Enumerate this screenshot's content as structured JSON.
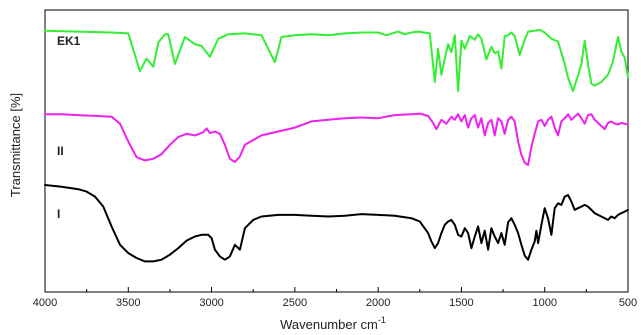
{
  "chart_data": {
    "type": "line",
    "xlabel": "Wavenumber cm",
    "xlabel_superscript": "-1",
    "ylabel": "Transmittance [%]",
    "xlim": [
      4000,
      500
    ],
    "x_reversed": true,
    "x_ticks": [
      4000,
      3500,
      3000,
      2500,
      2000,
      1500,
      1000,
      500
    ],
    "x_tick_labels": [
      "4000",
      "3500",
      "3000",
      "2500",
      "2000",
      "1500",
      "1000",
      "500"
    ],
    "y_ticks_shown": false,
    "grid": false,
    "legend": "none",
    "series_label_placement": "left, on each curve",
    "series": [
      {
        "name": "EK1",
        "color": "#33ee33",
        "offset_band": "top",
        "x": [
          4000,
          3600,
          3500,
          3430,
          3390,
          3350,
          3320,
          3280,
          3260,
          3220,
          3160,
          3100,
          3060,
          3010,
          2960,
          2900,
          2800,
          2700,
          2620,
          2580,
          2500,
          2400,
          2300,
          2200,
          2100,
          2000,
          1950,
          1880,
          1840,
          1800,
          1760,
          1690,
          1660,
          1640,
          1620,
          1600,
          1580,
          1560,
          1540,
          1520,
          1500,
          1480,
          1450,
          1420,
          1400,
          1380,
          1350,
          1320,
          1300,
          1280,
          1260,
          1240,
          1220,
          1200,
          1180,
          1150,
          1120,
          1100,
          1060,
          1030,
          1000,
          960,
          920,
          880,
          860,
          830,
          800,
          780,
          760,
          740,
          720,
          700,
          660,
          620,
          590,
          560,
          540,
          520,
          500
        ],
        "y": [
          97,
          95,
          94,
          52,
          66,
          57,
          84,
          93,
          93,
          60,
          90,
          82,
          80,
          68,
          88,
          93,
          94,
          92,
          62,
          90,
          92,
          93,
          92,
          94,
          95,
          95,
          92,
          96,
          93,
          95,
          96,
          94,
          40,
          77,
          48,
          66,
          82,
          73,
          92,
          30,
          86,
          77,
          91,
          87,
          93,
          88,
          65,
          79,
          72,
          74,
          55,
          91,
          92,
          95,
          91,
          70,
          87,
          96,
          97,
          98,
          95,
          88,
          85,
          60,
          45,
          30,
          47,
          60,
          86,
          60,
          38,
          36,
          40,
          48,
          63,
          90,
          74,
          67,
          45
        ]
      },
      {
        "name": "II",
        "color": "#ee22ee",
        "offset_band": "middle",
        "x": [
          4000,
          3900,
          3800,
          3700,
          3600,
          3550,
          3500,
          3450,
          3400,
          3350,
          3300,
          3250,
          3200,
          3150,
          3100,
          3050,
          3030,
          3010,
          2980,
          2950,
          2920,
          2890,
          2860,
          2830,
          2800,
          2700,
          2600,
          2500,
          2400,
          2300,
          2200,
          2100,
          2000,
          1900,
          1800,
          1750,
          1700,
          1670,
          1650,
          1620,
          1590,
          1560,
          1540,
          1520,
          1500,
          1480,
          1460,
          1440,
          1420,
          1400,
          1380,
          1360,
          1340,
          1320,
          1300,
          1280,
          1260,
          1240,
          1220,
          1200,
          1180,
          1160,
          1140,
          1120,
          1100,
          1080,
          1060,
          1040,
          1020,
          1000,
          980,
          960,
          940,
          920,
          900,
          880,
          860,
          840,
          820,
          800,
          780,
          760,
          740,
          720,
          700,
          680,
          660,
          640,
          620,
          600,
          580,
          560,
          540,
          520,
          500
        ],
        "y": [
          97,
          97,
          96,
          95,
          94,
          85,
          62,
          42,
          38,
          40,
          46,
          58,
          68,
          72,
          70,
          74,
          79,
          73,
          75,
          72,
          58,
          40,
          36,
          43,
          58,
          70,
          75,
          80,
          88,
          90,
          92,
          93,
          92,
          96,
          97,
          98,
          95,
          86,
          78,
          90,
          85,
          94,
          90,
          97,
          88,
          96,
          80,
          92,
          96,
          80,
          92,
          70,
          86,
          90,
          70,
          92,
          88,
          72,
          90,
          94,
          88,
          62,
          45,
          35,
          32,
          55,
          72,
          88,
          90,
          82,
          90,
          94,
          80,
          70,
          88,
          92,
          97,
          90,
          94,
          98,
          92,
          85,
          96,
          97,
          90,
          86,
          82,
          78,
          86,
          88,
          85,
          84,
          86,
          85,
          84
        ]
      },
      {
        "name": "I",
        "color": "#000000",
        "offset_band": "bottom",
        "x": [
          4000,
          3900,
          3800,
          3750,
          3700,
          3650,
          3600,
          3550,
          3500,
          3450,
          3400,
          3350,
          3300,
          3250,
          3200,
          3150,
          3100,
          3060,
          3020,
          3000,
          2980,
          2950,
          2920,
          2890,
          2860,
          2830,
          2800,
          2750,
          2700,
          2600,
          2500,
          2400,
          2300,
          2200,
          2100,
          2000,
          1900,
          1800,
          1750,
          1700,
          1680,
          1660,
          1640,
          1620,
          1600,
          1580,
          1560,
          1540,
          1520,
          1500,
          1480,
          1460,
          1440,
          1420,
          1400,
          1380,
          1360,
          1340,
          1320,
          1300,
          1280,
          1260,
          1240,
          1220,
          1200,
          1180,
          1160,
          1140,
          1120,
          1100,
          1080,
          1060,
          1050,
          1040,
          1020,
          1000,
          980,
          960,
          940,
          920,
          900,
          880,
          860,
          840,
          820,
          800,
          780,
          760,
          740,
          720,
          700,
          680,
          660,
          640,
          620,
          600,
          580,
          560,
          540,
          520,
          500
        ],
        "y": [
          100,
          98,
          95,
          92,
          86,
          74,
          50,
          28,
          18,
          12,
          8,
          8,
          10,
          16,
          24,
          33,
          38,
          40,
          40,
          36,
          22,
          14,
          10,
          14,
          28,
          22,
          48,
          58,
          62,
          64,
          64,
          63,
          62,
          63,
          65,
          64,
          63,
          60,
          56,
          42,
          32,
          24,
          30,
          42,
          52,
          56,
          58,
          52,
          40,
          38,
          48,
          42,
          24,
          38,
          50,
          30,
          45,
          22,
          48,
          38,
          30,
          42,
          28,
          55,
          60,
          52,
          42,
          28,
          15,
          10,
          22,
          32,
          45,
          30,
          52,
          72,
          60,
          40,
          72,
          78,
          76,
          86,
          88,
          80,
          70,
          72,
          74,
          76,
          74,
          70,
          66,
          64,
          62,
          60,
          58,
          62,
          60,
          64,
          66,
          68,
          70
        ]
      }
    ],
    "series_labels": [
      "EK1",
      "II",
      "I"
    ]
  }
}
